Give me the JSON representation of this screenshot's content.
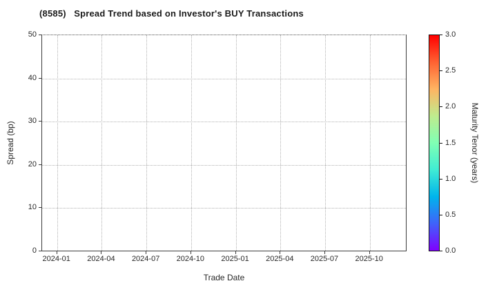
{
  "chart_data": {
    "type": "scatter",
    "title": "(8585)   Spread Trend based on Investor's BUY Transactions",
    "xlabel": "Trade Date",
    "ylabel": "Spread (bp)",
    "x_tick_labels": [
      "2024-01",
      "2024-04",
      "2024-07",
      "2024-10",
      "2025-01",
      "2025-04",
      "2025-07",
      "2025-10"
    ],
    "y_tick_values": [
      0,
      10,
      20,
      30,
      40,
      50
    ],
    "ylim": [
      0,
      50
    ],
    "grid": "dotted",
    "legend": "none",
    "points": [],
    "colorbar": {
      "label": "Maturity Tenor (years)",
      "tick_labels": [
        "0.0",
        "0.5",
        "1.0",
        "1.5",
        "2.0",
        "2.5",
        "3.0"
      ],
      "min": 0.0,
      "max": 3.0,
      "colormap": "rainbow",
      "gradient_stops_bottom_to_top": [
        "#8000ff",
        "#4062fa",
        "#00b4ec",
        "#40ecd4",
        "#80ffb4",
        "#bfec8e",
        "#ffb462",
        "#ff6232",
        "#ff0000"
      ]
    }
  },
  "colors": {
    "background": "#ffffff",
    "text": "#262626",
    "title_text": "#1a1a1a",
    "grid": "#b0b0b0",
    "spine": "#3a3a3a",
    "colorbar_border": "#111111"
  }
}
